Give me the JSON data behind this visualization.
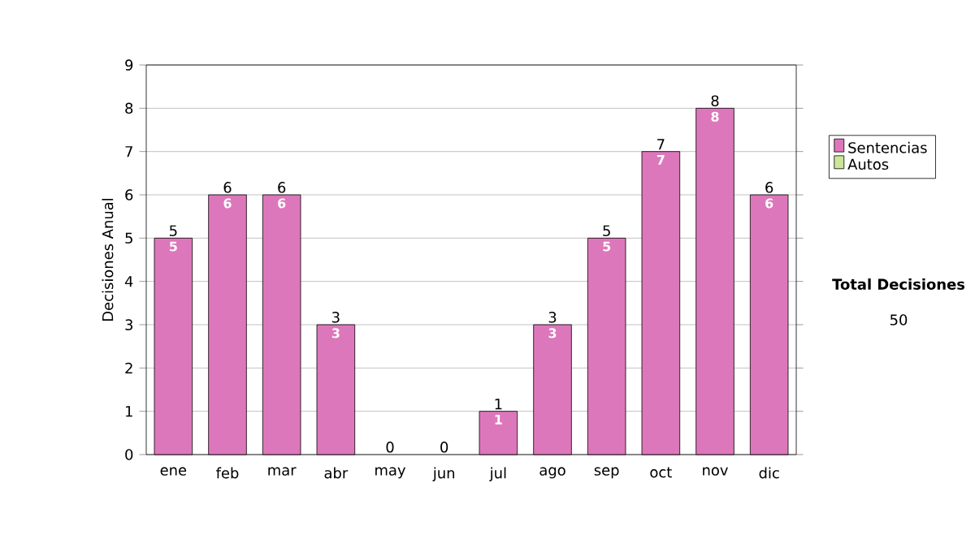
{
  "chart_data": {
    "type": "bar",
    "stacked": true,
    "ylabel": "Decisiones Anual",
    "categories": [
      "ene",
      "feb",
      "mar",
      "abr",
      "may",
      "jun",
      "jul",
      "ago",
      "sep",
      "oct",
      "nov",
      "dic"
    ],
    "series": [
      {
        "name": "Sentencias",
        "color": "#dd77bb",
        "values": [
          5,
          6,
          6,
          3,
          0,
          0,
          1,
          3,
          5,
          7,
          8,
          6
        ],
        "value_labels": [
          "5",
          "6",
          "6",
          "3",
          null,
          null,
          "1",
          "3",
          "5",
          "7",
          "8",
          "6"
        ]
      },
      {
        "name": "Autos",
        "color": "#cce699",
        "values": [
          0,
          0,
          0,
          0,
          0,
          0,
          0,
          0,
          0,
          0,
          0,
          0
        ]
      }
    ],
    "totals": [
      "5",
      "6",
      "6",
      "3",
      "0",
      "0",
      "1",
      "3",
      "5",
      "7",
      "8",
      "6"
    ],
    "ylim": [
      0,
      9
    ],
    "yticks": [
      0,
      1,
      2,
      3,
      4,
      5,
      6,
      7,
      8,
      9
    ],
    "grid": "y",
    "legend": "right",
    "annotations": [
      "Total Decisiones",
      "50"
    ]
  }
}
